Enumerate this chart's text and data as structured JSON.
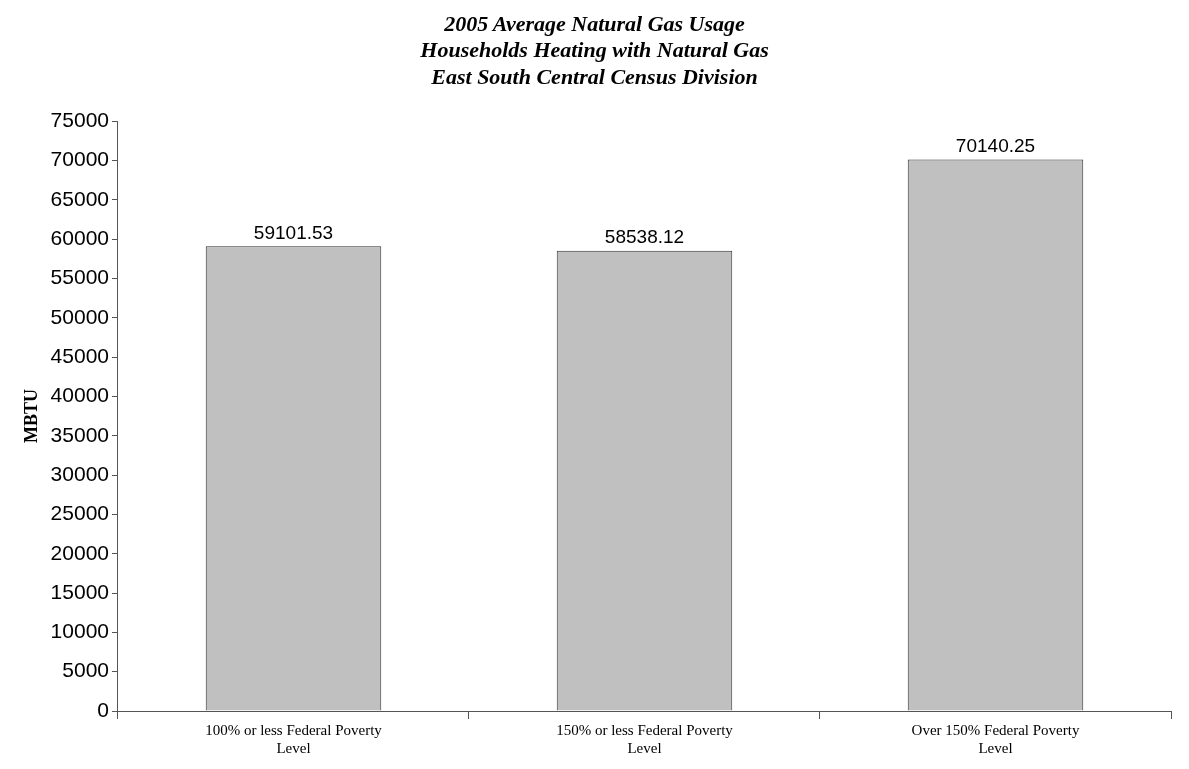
{
  "chart_data": {
    "type": "bar",
    "title": "2005 Average Natural Gas Usage\nHouseholds Heating with Natural Gas\nEast South Central Census Division",
    "ylabel": "MBTU",
    "categories": [
      "100% or less Federal Poverty Level",
      "150% or less Federal Poverty Level",
      "Over 150% Federal Poverty Level"
    ],
    "values": [
      59101.53,
      58538.12,
      70140.25
    ],
    "color": "#c0c0c0",
    "ylim": [
      0,
      75000
    ],
    "yticks": [
      0,
      5000,
      10000,
      15000,
      20000,
      25000,
      30000,
      35000,
      40000,
      45000,
      50000,
      55000,
      60000,
      65000,
      70000,
      75000
    ],
    "data_labels": true,
    "legend": false
  }
}
